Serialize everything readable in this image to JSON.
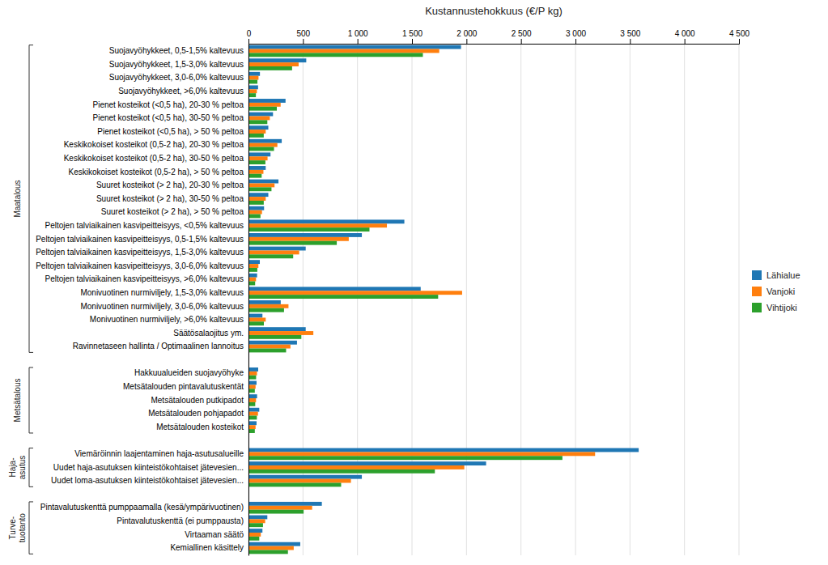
{
  "chart_data": {
    "type": "bar",
    "orientation": "horizontal",
    "title": "Kustannustehokkuus (€/P kg)",
    "categories": [
      "Suojavyöhykkeet, 0,5-1,5% kaltevuus",
      "Suojavyöhykkeet, 1,5-3,0% kaltevuus",
      "Suojavyöhykkeet, 3,0-6,0% kaltevuus",
      "Suojavyöhykkeet, >6,0% kaltevuus",
      "Pienet kosteikot (<0,5 ha), 20-30 % peltoa",
      "Pienet kosteikot (<0,5 ha), 30-50 % peltoa",
      "Pienet kosteikot (<0,5 ha), > 50 % peltoa",
      "Keskikokoiset kosteikot (0,5-2 ha), 20-30 % peltoa",
      "Keskikokoiset kosteikot (0,5-2 ha), 30-50 % peltoa",
      "Keskikokoiset kosteikot (0,5-2 ha), > 50 % peltoa",
      "Suuret kosteikot (> 2 ha), 20-30 % peltoa",
      "Suuret kosteikot (> 2 ha), 30-50 % peltoa",
      "Suuret kosteikot (> 2 ha), > 50 % peltoa",
      "Peltojen talviaikainen kasvipeitteisyys, <0,5% kaltevuus",
      "Peltojen talviaikainen kasvipeitteisyys, 0,5-1,5% kaltevuus",
      "Peltojen talviaikainen kasvipeitteisyys, 1,5-3,0% kaltevuus",
      "Peltojen talviaikainen kasvipeitteisyys, 3,0-6,0% kaltevuus",
      "Peltojen talviaikainen kasvipeitteisyys, >6,0% kaltevuus",
      "Monivuotinen nurmiviljely, 1,5-3,0% kaltevuus",
      "Monivuotinen nurmiviljely, 3,0-6,0% kaltevuus",
      "Monivuotinen nurmiviljely, >6,0% kaltevuus",
      "Säätösalaojitus ym.",
      "Ravinnetaseen hallinta / Optimaalinen lannoitus",
      "Hakkuualueiden suojavyöhyke",
      "Metsätalouden pintavalutuskentät",
      "Metsätalouden putkipadot",
      "Metsätalouden pohjapadot",
      "Metsätalouden kosteikot",
      "Viemäröinnin laajentaminen haja-asutusalueille",
      "Uudet haja-asutuksen kiinteistökohtaiset jätevesien...",
      "Uudet loma-asutuksen kiinteistökohtaiset jätevesien...",
      "Pintavalutuskenttä pumppaamalla (kesä/ympärivuotinen)",
      "Pintavalutuskenttä (ei pumppausta)",
      "Virtaaman säätö",
      "Kemiallinen käsittely"
    ],
    "series": [
      {
        "name": "Lähialue",
        "values": [
          1950,
          530,
          105,
          88,
          340,
          225,
          182,
          305,
          202,
          158,
          275,
          182,
          143,
          1430,
          1040,
          525,
          104,
          79,
          1580,
          296,
          128,
          525,
          445,
          89,
          74,
          79,
          99,
          74,
          3580,
          2180,
          1040,
          673,
          173,
          128,
          475
        ]
      },
      {
        "name": "Vanjoki",
        "values": [
          1750,
          460,
          92,
          77,
          295,
          196,
          158,
          265,
          175,
          137,
          239,
          158,
          124,
          1270,
          920,
          465,
          91,
          69,
          1960,
          367,
          158,
          595,
          385,
          78,
          65,
          69,
          87,
          65,
          3180,
          1980,
          940,
          584,
          153,
          113,
          415
        ]
      },
      {
        "name": "Vihtijoki",
        "values": [
          1600,
          400,
          82,
          68,
          260,
          173,
          140,
          234,
          155,
          121,
          211,
          140,
          110,
          1110,
          810,
          410,
          81,
          61,
          1740,
          326,
          141,
          485,
          345,
          70,
          58,
          62,
          77,
          58,
          2880,
          1710,
          850,
          506,
          133,
          99,
          362
        ]
      }
    ],
    "xlim": [
      0,
      4500
    ],
    "xticks": [
      0,
      500,
      {
        "value": 1000,
        "label": "1 000"
      },
      {
        "value": 1500,
        "label": "1 500"
      },
      {
        "value": 2000,
        "label": "2 000"
      },
      {
        "value": 2500,
        "label": "2 500"
      },
      {
        "value": 3000,
        "label": "3 000"
      },
      {
        "value": 3500,
        "label": "3 500"
      },
      {
        "value": 4000,
        "label": "4 000"
      },
      {
        "value": 4500,
        "label": "4 500"
      }
    ],
    "grid": true,
    "legend": "right",
    "groups": [
      {
        "label": "Maatalous",
        "first": 0,
        "last": 22
      },
      {
        "label": "Metsätalous",
        "first": 23,
        "last": 27
      },
      {
        "label": "Haja-\nasutus",
        "first": 28,
        "last": 30
      },
      {
        "label": "Turve-\ntuotanto",
        "first": 31,
        "last": 34
      }
    ]
  }
}
